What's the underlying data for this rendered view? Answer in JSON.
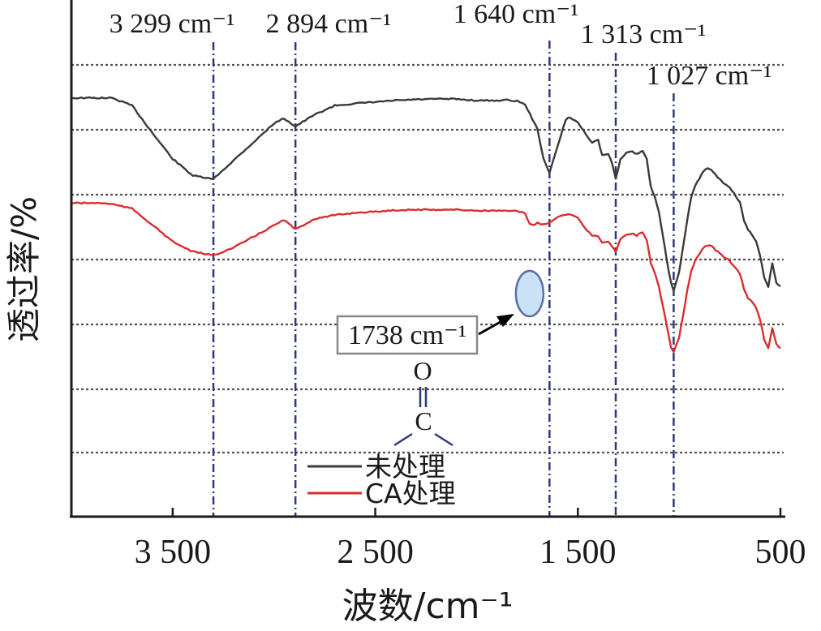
{
  "chart_data": {
    "type": "line",
    "title": "",
    "xlabel": "波数/cm⁻¹",
    "ylabel": "透过率/%",
    "x_reversed": true,
    "xlim": [
      4000,
      500
    ],
    "xticks": [
      {
        "value": 3500,
        "label": "3 500"
      },
      {
        "value": 2500,
        "label": "2 500"
      },
      {
        "value": 1500,
        "label": "1 500"
      },
      {
        "value": 500,
        "label": "500"
      }
    ],
    "ylim": [
      0,
      100
    ],
    "grid": "horizontal dotted",
    "legend_position": "bottom-center",
    "series": [
      {
        "name": "未处理",
        "color": "#3d3935",
        "x": [
          4000,
          3850,
          3800,
          3700,
          3600,
          3500,
          3400,
          3300,
          3200,
          3100,
          3000,
          2950,
          2894,
          2800,
          2700,
          2600,
          2500,
          2400,
          2300,
          2200,
          2100,
          2000,
          1900,
          1850,
          1800,
          1760,
          1700,
          1670,
          1640,
          1600,
          1560,
          1540,
          1500,
          1470,
          1430,
          1400,
          1380,
          1350,
          1330,
          1313,
          1290,
          1260,
          1230,
          1210,
          1190,
          1180,
          1160,
          1140,
          1120,
          1100,
          1080,
          1060,
          1040,
          1027,
          1000,
          980,
          960,
          940,
          920,
          900,
          880,
          860,
          840,
          820,
          800,
          780,
          760,
          740,
          720,
          700,
          680,
          660,
          640,
          620,
          600,
          580,
          560,
          540,
          520,
          500
        ],
        "y": [
          82.3,
          82.3,
          82.3,
          80.8,
          75.4,
          70.3,
          67.0,
          66.3,
          70.0,
          73.6,
          77.3,
          78.3,
          76.7,
          79.0,
          80.8,
          81.2,
          81.5,
          81.8,
          82.0,
          82.1,
          82.1,
          81.8,
          81.8,
          81.9,
          81.7,
          81.0,
          76.2,
          70.5,
          67.5,
          72.8,
          78.0,
          78.5,
          77.5,
          75.7,
          73.6,
          74.0,
          71.0,
          71.3,
          69.3,
          66.3,
          70.3,
          71.5,
          71.8,
          71.2,
          71.8,
          71.8,
          70.3,
          64.8,
          62.8,
          59.8,
          55.2,
          50.0,
          45.8,
          44.3,
          47.9,
          53.0,
          58.3,
          62.8,
          65.1,
          66.4,
          67.9,
          68.6,
          68.2,
          67.1,
          66.4,
          65.4,
          65.0,
          64.1,
          63.0,
          61.7,
          58.2,
          56.3,
          55.4,
          54.0,
          51.2,
          47.0,
          45.2,
          49.7,
          45.9,
          45.2
        ]
      },
      {
        "name": "CA处理",
        "color": "#d92e31",
        "x": [
          4000,
          3850,
          3800,
          3700,
          3600,
          3500,
          3400,
          3300,
          3200,
          3100,
          3000,
          2950,
          2894,
          2800,
          2700,
          2600,
          2500,
          2400,
          2300,
          2200,
          2100,
          2000,
          1900,
          1850,
          1800,
          1760,
          1738,
          1720,
          1700,
          1670,
          1640,
          1600,
          1560,
          1540,
          1500,
          1470,
          1430,
          1400,
          1380,
          1350,
          1330,
          1313,
          1290,
          1260,
          1230,
          1210,
          1190,
          1180,
          1160,
          1140,
          1120,
          1100,
          1080,
          1060,
          1040,
          1027,
          1000,
          980,
          960,
          940,
          920,
          900,
          880,
          860,
          840,
          820,
          800,
          780,
          760,
          740,
          720,
          700,
          680,
          660,
          640,
          620,
          600,
          580,
          560,
          540,
          520,
          500
        ],
        "y": [
          61.6,
          61.6,
          61.4,
          60.5,
          57.3,
          54.0,
          52.0,
          51.3,
          52.8,
          55.0,
          57.2,
          58.3,
          56.4,
          58.5,
          59.2,
          59.7,
          59.9,
          60.2,
          60.3,
          60.3,
          60.3,
          60.1,
          60.1,
          60.0,
          60.0,
          59.6,
          57.5,
          57.2,
          57.7,
          57.4,
          57.8,
          58.9,
          59.3,
          59.5,
          58.8,
          56.9,
          55.2,
          55.0,
          53.7,
          54.0,
          53.0,
          52.0,
          54.6,
          55.4,
          55.6,
          55.2,
          55.8,
          55.8,
          54.4,
          49.7,
          47.9,
          45.0,
          41.3,
          37.1,
          33.2,
          32.2,
          35.1,
          39.6,
          44.3,
          48.3,
          50.3,
          51.6,
          52.8,
          53.3,
          53.2,
          52.3,
          51.8,
          51.0,
          50.6,
          49.7,
          48.8,
          47.7,
          44.7,
          42.9,
          42.2,
          41.0,
          38.5,
          34.8,
          33.1,
          37.0,
          33.8,
          33.0
        ]
      }
    ],
    "markers": [
      {
        "x": 3299,
        "label": "3 299 cm⁻¹"
      },
      {
        "x": 2894,
        "label": "2 894 cm⁻¹"
      },
      {
        "x": 1640,
        "label": "1 640 cm⁻¹"
      },
      {
        "x": 1313,
        "label": "1 313 cm⁻¹"
      },
      {
        "x": 1027,
        "label": "1 027 cm⁻¹"
      }
    ],
    "annotation": {
      "label": "1738 cm⁻¹",
      "x": 1738,
      "structure_top": "O",
      "structure_bottom": "C"
    },
    "colors": {
      "axis": "#1a1a1a",
      "grid": "#5a5050",
      "marker_line": "#2c3a78",
      "highlight_fill": "#c9e2f5",
      "highlight_stroke": "#5a6fa8",
      "label_box_border": "#888888"
    }
  }
}
